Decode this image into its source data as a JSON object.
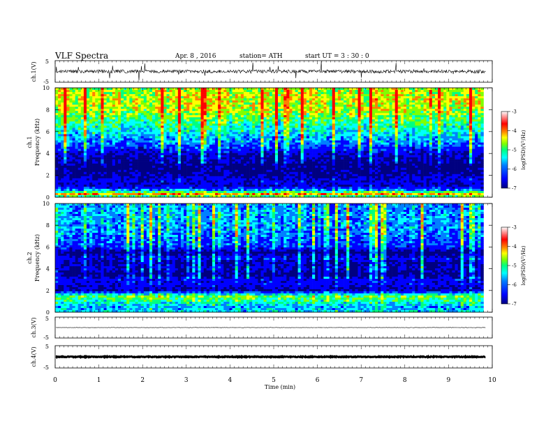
{
  "header": {
    "title": "VLF Spectra",
    "date": "Apr. 8 , 2016",
    "station": "station= ATH",
    "start_ut": "start  UT  =   3  : 30 : 0"
  },
  "chart_data": [
    {
      "type": "line",
      "panel": "ch1-waveform",
      "ylabel": "ch.1(V)",
      "ylim": [
        -5,
        5
      ],
      "yticks": [
        "5",
        "-5"
      ],
      "xlim": [
        0,
        10
      ],
      "approx_level_V": 0,
      "note_values": "dense noisy waveform around 0 V with spikes to about +2 V and -2 V"
    },
    {
      "type": "heatmap",
      "panel": "ch1-spectrogram",
      "ylabel": "Frequency (kHz)",
      "channel_label": "ch.1",
      "ylim": [
        0,
        10
      ],
      "yticks": [
        "10",
        "8",
        "6",
        "4",
        "2",
        "0"
      ],
      "xlim": [
        0,
        9.8
      ],
      "color_scale": {
        "label": "log(PSD)(V²/Hz)",
        "range": [
          -7,
          -3
        ],
        "ticks": [
          "-3",
          "-4",
          "-5",
          "-6",
          "-7"
        ]
      },
      "profile_log_psd": [
        {
          "f": 0.0,
          "v": -5.2
        },
        {
          "f": 0.3,
          "v": -3.9
        },
        {
          "f": 0.6,
          "v": -5.4
        },
        {
          "f": 1.0,
          "v": -6.5
        },
        {
          "f": 1.5,
          "v": -6.3
        },
        {
          "f": 2.0,
          "v": -6.7
        },
        {
          "f": 2.5,
          "v": -6.9
        },
        {
          "f": 3.0,
          "v": -6.8
        },
        {
          "f": 3.5,
          "v": -6.7
        },
        {
          "f": 4.0,
          "v": -6.5
        },
        {
          "f": 4.5,
          "v": -6.0
        },
        {
          "f": 5.0,
          "v": -5.6
        },
        {
          "f": 6.0,
          "v": -5.2
        },
        {
          "f": 7.0,
          "v": -4.8
        },
        {
          "f": 8.0,
          "v": -4.4
        },
        {
          "f": 9.0,
          "v": -4.3
        },
        {
          "f": 10.0,
          "v": -4.5
        }
      ]
    },
    {
      "type": "heatmap",
      "panel": "ch2-spectrogram",
      "ylabel": "Frequency (kHz)",
      "channel_label": "ch.2",
      "ylim": [
        0,
        10
      ],
      "yticks": [
        "10",
        "8",
        "6",
        "4",
        "2",
        "0"
      ],
      "xlim": [
        0,
        9.8
      ],
      "color_scale": {
        "label": "log(PSD)(V²/Hz)",
        "range": [
          -7,
          -3
        ],
        "ticks": [
          "-3",
          "-4",
          "-5",
          "-6",
          "-7"
        ]
      },
      "profile_log_psd": [
        {
          "f": 0.0,
          "v": -5.3
        },
        {
          "f": 0.5,
          "v": -5.5
        },
        {
          "f": 1.0,
          "v": -5.0
        },
        {
          "f": 1.5,
          "v": -4.6
        },
        {
          "f": 2.0,
          "v": -6.6
        },
        {
          "f": 2.5,
          "v": -6.3
        },
        {
          "f": 3.0,
          "v": -6.2
        },
        {
          "f": 3.5,
          "v": -6.9
        },
        {
          "f": 4.0,
          "v": -6.4
        },
        {
          "f": 4.5,
          "v": -6.7
        },
        {
          "f": 5.0,
          "v": -6.2
        },
        {
          "f": 5.5,
          "v": -6.9
        },
        {
          "f": 6.0,
          "v": -6.0
        },
        {
          "f": 7.0,
          "v": -5.7
        },
        {
          "f": 8.0,
          "v": -5.5
        },
        {
          "f": 9.0,
          "v": -5.5
        },
        {
          "f": 10.0,
          "v": -5.6
        }
      ]
    },
    {
      "type": "line",
      "panel": "ch3-waveform",
      "ylabel": "ch.3(V)",
      "ylim": [
        -5,
        5
      ],
      "yticks": [
        "5",
        "-5"
      ],
      "xlim": [
        0,
        10
      ],
      "approx_level_V": 0
    },
    {
      "type": "line",
      "panel": "ch4-waveform",
      "ylabel": "ch.4(V)",
      "ylim": [
        -5,
        5
      ],
      "yticks": [
        "5",
        "-5"
      ],
      "xlim": [
        0,
        10
      ],
      "approx_level_V": 0
    }
  ],
  "time_axis": {
    "xlabel": "Time  (min)",
    "ticks": [
      "0",
      "1",
      "2",
      "3",
      "4",
      "5",
      "6",
      "7",
      "8",
      "9",
      "10"
    ]
  },
  "colormap": [
    "#000080",
    "#0000ff",
    "#0080ff",
    "#00ffff",
    "#00ff80",
    "#80ff00",
    "#ffff00",
    "#ff8000",
    "#ff0000",
    "#ffffff"
  ]
}
